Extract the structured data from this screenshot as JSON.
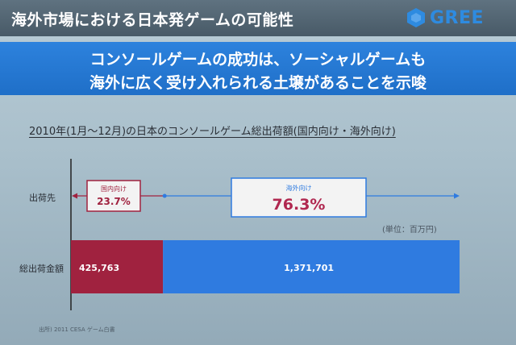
{
  "header": {
    "title": "海外市場における日本発ゲームの可能性",
    "logo_text": "GREE",
    "logo_icon": "gree-hexagon-logo-icon"
  },
  "banner": {
    "line1": "コンソールゲームの成功は、ソーシャルゲームも",
    "line2": "海外に広く受け入れられる土壌があることを示唆"
  },
  "chart_data": {
    "type": "bar",
    "orientation": "horizontal",
    "stacked": true,
    "title": "2010年(1月～12月)の日本のコンソールゲーム総出荷額(国内向け・海外向け)",
    "categories": [
      "総出荷金額"
    ],
    "series": [
      {
        "name": "国内向け",
        "share_label": "23.7%",
        "values": [
          425763
        ],
        "value_label": "425,763",
        "color": "#a0223f"
      },
      {
        "name": "海外向け",
        "share_label": "76.3%",
        "values": [
          1371701
        ],
        "value_label": "1,371,701",
        "color": "#2f7be0"
      }
    ],
    "share_row_label": "出荷先",
    "unit": "(単位：百万円)",
    "source": "出所) 2011 CESA ゲーム白書"
  },
  "colors": {
    "title_bar": "#4e606d",
    "banner": "#2577d4",
    "domestic": "#a0223f",
    "overseas": "#2f7be0",
    "logo": "#2e8be0"
  }
}
